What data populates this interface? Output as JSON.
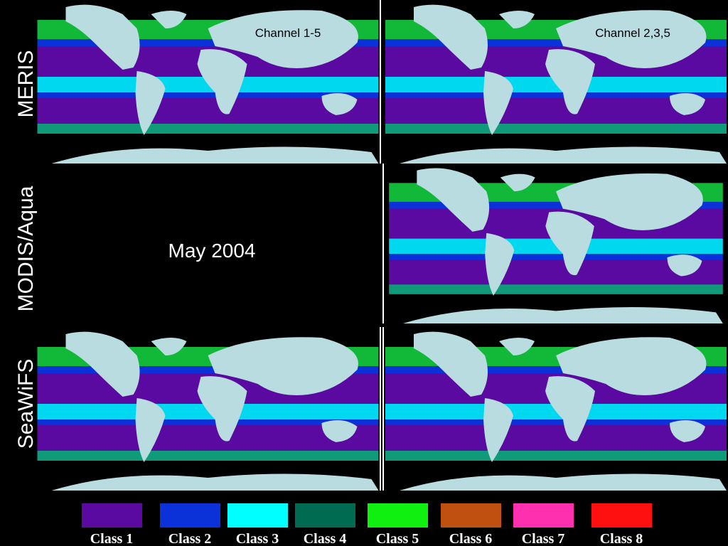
{
  "rows": [
    {
      "label": "MERIS"
    },
    {
      "label": "MODIS/Aqua"
    },
    {
      "label": "SeaWiFS"
    }
  ],
  "columns": [
    {
      "label": "Channel 1-5"
    },
    {
      "label": "Channel 2,3,5"
    }
  ],
  "date": "May 2004",
  "legend": [
    {
      "label": "Class 1",
      "color": "#5a0aa0"
    },
    {
      "label": "Class 2",
      "color": "#0a32d8"
    },
    {
      "label": "Class 3",
      "color": "#00ffff"
    },
    {
      "label": "Class 4",
      "color": "#006b50"
    },
    {
      "label": "Class 5",
      "color": "#10f010"
    },
    {
      "label": "Class 6",
      "color": "#c05010"
    },
    {
      "label": "Class 7",
      "color": "#ff30b0"
    },
    {
      "label": "Class 8",
      "color": "#ff1010"
    }
  ]
}
